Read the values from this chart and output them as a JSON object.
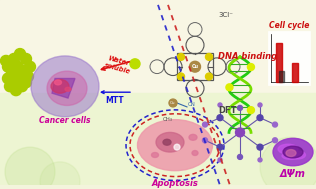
{
  "figsize": [
    3.16,
    1.89
  ],
  "dpi": 100,
  "bg_color": "#f5f4e2",
  "bg_bottom_color": "#eaf5d5",
  "labels": {
    "water_soluble": "Water\nsoluble",
    "cancer_cells": "Cancer cells",
    "mtt": "MTT",
    "apoptosis": "Apoptosis",
    "dna_binding": "DNA binding",
    "cell_cycle": "Cell cycle",
    "dft": "DFT",
    "delta_psi": "ΔΨm",
    "charge": "3Cl⁻"
  },
  "colors": {
    "water_soluble": "#dd1111",
    "cancer_cells": "#cc0099",
    "mtt": "#1111dd",
    "apoptosis": "#cc0099",
    "dna_binding": "#cc1111",
    "cell_cycle": "#cc1111",
    "dft": "#444444",
    "delta_psi": "#bb00aa",
    "charge": "#444444",
    "nanoparticle": "#aacc00",
    "cancer_cell_outer": "#9977cc",
    "cancer_cell_inner": "#cc44aa",
    "apoptosis_cell": "#ee88aa",
    "apoptosis_nucleus": "#cc5577",
    "dna1": "#22cc11",
    "dna2": "#77dd00",
    "dna_node": "#ddee00",
    "dft_bond": "#6655aa",
    "dft_atom_center": "#8844bb",
    "dft_atom_outer": "#5533aa",
    "dft_atom_tip": "#9966cc",
    "mito_outer": "#9933cc",
    "mito_inner": "#cc55dd",
    "mito_dark": "#662299",
    "porphyrin_ring": "#444444",
    "porphyrin_S": "#ddcc00",
    "porphyrin_Cu": "#aa8844",
    "hist_bg": "#ffffff",
    "hist_bar1": "#cc0000",
    "hist_bar2": "#222222",
    "red_dash": "#cc2222",
    "blue_dash": "#2222cc"
  }
}
